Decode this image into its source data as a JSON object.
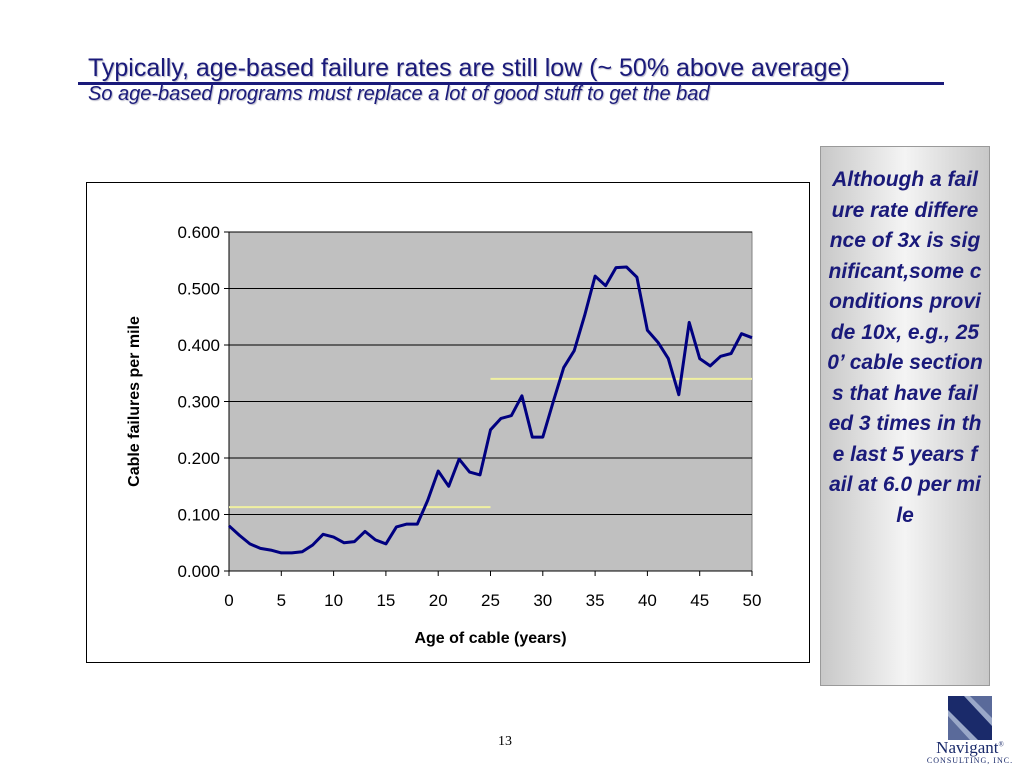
{
  "slide": {
    "title": "Typically, age-based failure rates are still low (~ 50% above average)",
    "subtitle": "So age-based programs must replace a lot of good stuff to get the bad",
    "note": "Although a failure rate difference of 3x is significant,some conditions provide 10x, e.g., 250’ cable sections that have failed 3 times in the last 5 years fail at 6.0 per mile",
    "page_number": "13"
  },
  "logo": {
    "name": "Navigant",
    "trademark": "®",
    "subtitle": "CONSULTING, INC."
  },
  "chart_data": {
    "type": "line",
    "xlabel": "Age of cable (years)",
    "ylabel": "Cable failures per mile",
    "xlim": [
      0,
      50
    ],
    "ylim": [
      0,
      0.6
    ],
    "xticks": [
      "0",
      "5",
      "10",
      "15",
      "20",
      "25",
      "30",
      "35",
      "40",
      "45",
      "50"
    ],
    "yticks": [
      "0.000",
      "0.100",
      "0.200",
      "0.300",
      "0.400",
      "0.500",
      "0.600"
    ],
    "grid": "horizontal",
    "plot_background": "#c0c0c0",
    "series": [
      {
        "color": "#000080",
        "x": [
          0,
          1,
          2,
          3,
          4,
          5,
          6,
          7,
          8,
          9,
          10,
          11,
          12,
          13,
          14,
          15,
          16,
          17,
          18,
          19,
          20,
          21,
          22,
          23,
          24,
          25,
          26,
          27,
          28,
          29,
          30,
          31,
          32,
          33,
          34,
          35,
          36,
          37,
          38,
          39,
          40,
          41,
          42,
          43,
          44,
          45,
          46,
          47,
          48,
          49,
          50
        ],
        "y": [
          0.08,
          0.063,
          0.048,
          0.04,
          0.037,
          0.032,
          0.032,
          0.034,
          0.046,
          0.065,
          0.06,
          0.05,
          0.052,
          0.07,
          0.055,
          0.048,
          0.078,
          0.083,
          0.083,
          0.125,
          0.177,
          0.15,
          0.198,
          0.175,
          0.17,
          0.25,
          0.27,
          0.275,
          0.31,
          0.237,
          0.237,
          0.3,
          0.36,
          0.39,
          0.452,
          0.522,
          0.505,
          0.537,
          0.538,
          0.52,
          0.426,
          0.405,
          0.376,
          0.312,
          0.44,
          0.376,
          0.363,
          0.38,
          0.385,
          0.42,
          0.413
        ]
      }
    ],
    "reference_lines": [
      {
        "color": "#f0f0a0",
        "x": [
          0,
          25
        ],
        "y": 0.113
      },
      {
        "color": "#f0f0a0",
        "x": [
          25,
          51
        ],
        "y": 0.34
      }
    ]
  }
}
